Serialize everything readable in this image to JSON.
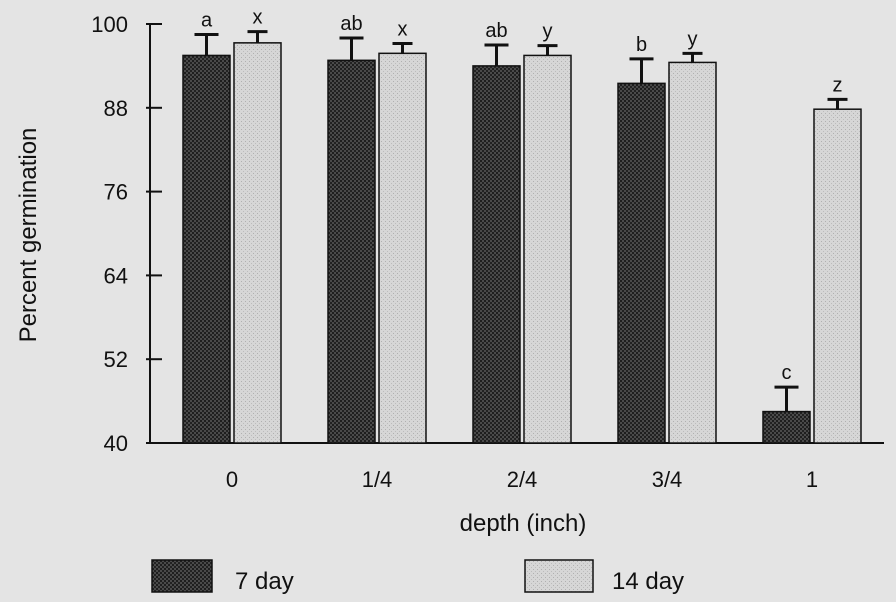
{
  "chart_data": {
    "type": "bar",
    "title": "",
    "xlabel": "depth (inch)",
    "ylabel": "Percent germination",
    "categories": [
      "0",
      "1/4",
      "2/4",
      "3/4",
      "1"
    ],
    "ylim": [
      40,
      100
    ],
    "yticks": [
      40,
      52,
      64,
      76,
      88,
      100
    ],
    "grid": false,
    "legend_position": "bottom",
    "series": [
      {
        "name": "7 day",
        "values": [
          95.5,
          94.8,
          94.0,
          91.5,
          44.5
        ],
        "error": [
          3.0,
          3.2,
          3.0,
          3.5,
          3.5
        ],
        "labels": [
          "a",
          "ab",
          "ab",
          "b",
          "c"
        ],
        "color": "#3a3a3a"
      },
      {
        "name": "14 day",
        "values": [
          97.3,
          95.8,
          95.5,
          94.5,
          87.8
        ],
        "error": [
          1.6,
          1.4,
          1.4,
          1.3,
          1.4
        ],
        "labels": [
          "x",
          "x",
          "y",
          "y",
          "z"
        ],
        "color": "#d2d2d2"
      }
    ]
  }
}
